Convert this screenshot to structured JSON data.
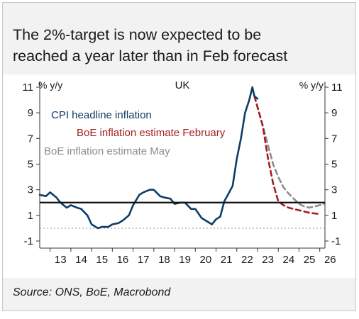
{
  "title_line1": "The  2%-target is now expected to be",
  "title_line2": "reached a year later than in Feb forecast",
  "source": "Source: ONS, BoE, Macrobond",
  "colors": {
    "cpi": "#0d3d66",
    "feb": "#a31f1f",
    "may": "#8c8c8c",
    "target": "#111111",
    "zero": "#999999"
  },
  "chart_data": {
    "type": "line",
    "title": "UK",
    "ylabel_left": "% y/y",
    "ylabel_right": "% y/y",
    "ylim": [
      -1,
      11
    ],
    "yticks": [
      "-1",
      "1",
      "3",
      "5",
      "7",
      "9",
      "11"
    ],
    "xlim": [
      2012.5,
      2026.25
    ],
    "xticks": [
      "13",
      "14",
      "15",
      "16",
      "17",
      "18",
      "19",
      "20",
      "21",
      "22",
      "23",
      "24",
      "25",
      "26"
    ],
    "grid": false,
    "target_line": 2,
    "zero_line": 0,
    "series": [
      {
        "name": "CPI headline inflation",
        "style": "solid",
        "x": [
          2012.5,
          2012.8,
          2013.0,
          2013.3,
          2013.5,
          2013.8,
          2014.0,
          2014.3,
          2014.5,
          2014.8,
          2015.0,
          2015.3,
          2015.5,
          2015.8,
          2016.0,
          2016.3,
          2016.5,
          2016.8,
          2017.0,
          2017.3,
          2017.5,
          2017.8,
          2018.0,
          2018.3,
          2018.5,
          2018.8,
          2019.0,
          2019.3,
          2019.5,
          2019.8,
          2020.0,
          2020.3,
          2020.5,
          2020.8,
          2021.0,
          2021.2,
          2021.4,
          2021.6,
          2021.8,
          2022.0,
          2022.2,
          2022.4,
          2022.6,
          2022.75,
          2022.85,
          2023.0
        ],
        "y": [
          2.6,
          2.5,
          2.8,
          2.4,
          2.0,
          1.6,
          1.8,
          1.6,
          1.5,
          1.0,
          0.3,
          0.0,
          0.1,
          0.1,
          0.3,
          0.4,
          0.6,
          1.0,
          1.8,
          2.6,
          2.8,
          3.0,
          3.0,
          2.5,
          2.4,
          2.3,
          1.9,
          2.0,
          2.0,
          1.5,
          1.5,
          0.8,
          0.6,
          0.3,
          0.7,
          0.9,
          2.1,
          2.7,
          3.3,
          5.4,
          7.0,
          9.0,
          10.0,
          11.0,
          10.3,
          10.1
        ]
      },
      {
        "name": "BoE inflation estimate February",
        "style": "dashed",
        "x": [
          2022.85,
          2023.25,
          2023.5,
          2023.75,
          2024.0,
          2024.25,
          2024.5,
          2024.75,
          2025.0,
          2025.5,
          2026.0
        ],
        "y": [
          10.3,
          8.0,
          5.5,
          3.5,
          2.1,
          1.8,
          1.6,
          1.5,
          1.4,
          1.2,
          1.1
        ]
      },
      {
        "name": "BoE inflation estimate May",
        "style": "dashed",
        "x": [
          2022.85,
          2023.25,
          2023.5,
          2023.75,
          2024.0,
          2024.25,
          2024.5,
          2024.75,
          2025.0,
          2025.25,
          2025.5,
          2025.75,
          2026.0,
          2026.25
        ],
        "y": [
          10.3,
          8.0,
          6.5,
          5.0,
          4.0,
          3.2,
          2.7,
          2.3,
          1.9,
          1.7,
          1.6,
          1.7,
          1.8,
          1.9
        ]
      }
    ]
  }
}
